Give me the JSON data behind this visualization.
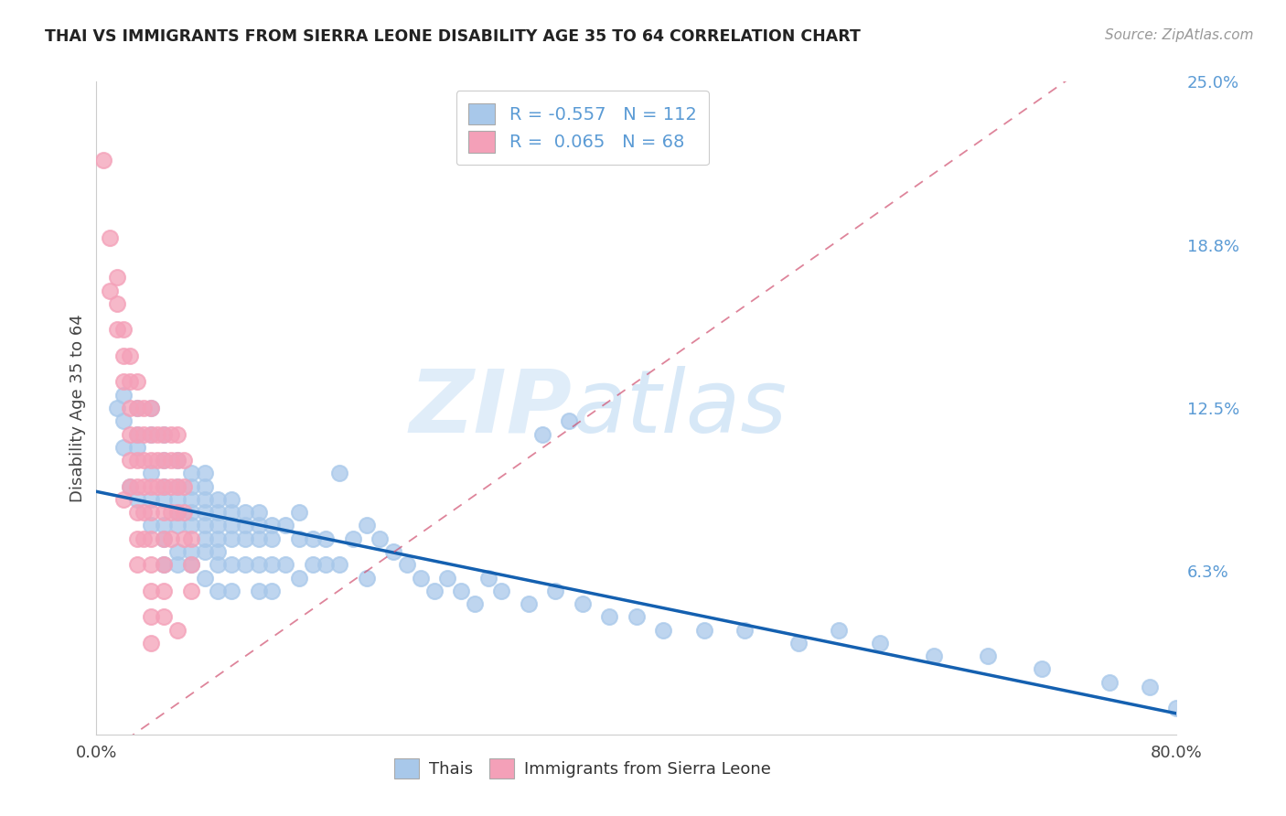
{
  "title": "THAI VS IMMIGRANTS FROM SIERRA LEONE DISABILITY AGE 35 TO 64 CORRELATION CHART",
  "source": "Source: ZipAtlas.com",
  "ylabel": "Disability Age 35 to 64",
  "xlim": [
    0.0,
    0.8
  ],
  "ylim": [
    0.0,
    0.25
  ],
  "yticks": [
    0.0,
    0.0625,
    0.125,
    0.1875,
    0.25
  ],
  "ytick_labels": [
    "",
    "6.3%",
    "12.5%",
    "18.8%",
    "25.0%"
  ],
  "xtick_positions": [
    0.0,
    0.1,
    0.2,
    0.3,
    0.4,
    0.5,
    0.6,
    0.7,
    0.8
  ],
  "xtick_labels": [
    "0.0%",
    "",
    "",
    "",
    "",
    "",
    "",
    "",
    "80.0%"
  ],
  "blue_R": -0.557,
  "blue_N": 112,
  "pink_R": 0.065,
  "pink_N": 68,
  "blue_scatter_color": "#a8c8ea",
  "pink_scatter_color": "#f4a0b8",
  "line_blue_color": "#1460b0",
  "line_pink_color": "#d05070",
  "watermark_color": "#ccdff5",
  "grid_color": "#cccccc",
  "right_tick_color": "#5b9bd5",
  "title_color": "#222222",
  "source_color": "#999999",
  "ylabel_color": "#444444",
  "blue_scatter_x": [
    0.015,
    0.02,
    0.02,
    0.02,
    0.025,
    0.03,
    0.03,
    0.03,
    0.03,
    0.04,
    0.04,
    0.04,
    0.04,
    0.04,
    0.05,
    0.05,
    0.05,
    0.05,
    0.05,
    0.05,
    0.05,
    0.06,
    0.06,
    0.06,
    0.06,
    0.06,
    0.06,
    0.06,
    0.07,
    0.07,
    0.07,
    0.07,
    0.07,
    0.07,
    0.07,
    0.08,
    0.08,
    0.08,
    0.08,
    0.08,
    0.08,
    0.08,
    0.08,
    0.09,
    0.09,
    0.09,
    0.09,
    0.09,
    0.09,
    0.09,
    0.1,
    0.1,
    0.1,
    0.1,
    0.1,
    0.1,
    0.11,
    0.11,
    0.11,
    0.11,
    0.12,
    0.12,
    0.12,
    0.12,
    0.12,
    0.13,
    0.13,
    0.13,
    0.13,
    0.14,
    0.14,
    0.15,
    0.15,
    0.15,
    0.16,
    0.16,
    0.17,
    0.17,
    0.18,
    0.18,
    0.19,
    0.2,
    0.2,
    0.21,
    0.22,
    0.23,
    0.24,
    0.25,
    0.26,
    0.27,
    0.28,
    0.29,
    0.3,
    0.32,
    0.34,
    0.36,
    0.38,
    0.4,
    0.42,
    0.45,
    0.48,
    0.52,
    0.55,
    0.58,
    0.62,
    0.66,
    0.7,
    0.75,
    0.78,
    0.8,
    0.33,
    0.35
  ],
  "blue_scatter_y": [
    0.125,
    0.13,
    0.12,
    0.11,
    0.095,
    0.125,
    0.115,
    0.11,
    0.09,
    0.125,
    0.115,
    0.1,
    0.09,
    0.08,
    0.115,
    0.105,
    0.095,
    0.09,
    0.08,
    0.075,
    0.065,
    0.105,
    0.095,
    0.09,
    0.085,
    0.08,
    0.07,
    0.065,
    0.1,
    0.095,
    0.09,
    0.085,
    0.08,
    0.07,
    0.065,
    0.1,
    0.095,
    0.09,
    0.085,
    0.08,
    0.075,
    0.07,
    0.06,
    0.09,
    0.085,
    0.08,
    0.075,
    0.07,
    0.065,
    0.055,
    0.09,
    0.085,
    0.08,
    0.075,
    0.065,
    0.055,
    0.085,
    0.08,
    0.075,
    0.065,
    0.085,
    0.08,
    0.075,
    0.065,
    0.055,
    0.08,
    0.075,
    0.065,
    0.055,
    0.08,
    0.065,
    0.085,
    0.075,
    0.06,
    0.075,
    0.065,
    0.075,
    0.065,
    0.1,
    0.065,
    0.075,
    0.08,
    0.06,
    0.075,
    0.07,
    0.065,
    0.06,
    0.055,
    0.06,
    0.055,
    0.05,
    0.06,
    0.055,
    0.05,
    0.055,
    0.05,
    0.045,
    0.045,
    0.04,
    0.04,
    0.04,
    0.035,
    0.04,
    0.035,
    0.03,
    0.03,
    0.025,
    0.02,
    0.018,
    0.01,
    0.115,
    0.12
  ],
  "pink_scatter_x": [
    0.005,
    0.01,
    0.01,
    0.015,
    0.015,
    0.015,
    0.02,
    0.02,
    0.02,
    0.02,
    0.025,
    0.025,
    0.025,
    0.025,
    0.025,
    0.025,
    0.03,
    0.03,
    0.03,
    0.03,
    0.03,
    0.03,
    0.03,
    0.03,
    0.035,
    0.035,
    0.035,
    0.035,
    0.035,
    0.035,
    0.04,
    0.04,
    0.04,
    0.04,
    0.04,
    0.04,
    0.04,
    0.04,
    0.04,
    0.04,
    0.045,
    0.045,
    0.045,
    0.05,
    0.05,
    0.05,
    0.05,
    0.05,
    0.05,
    0.05,
    0.05,
    0.055,
    0.055,
    0.055,
    0.055,
    0.055,
    0.06,
    0.06,
    0.06,
    0.06,
    0.06,
    0.065,
    0.065,
    0.065,
    0.065,
    0.07,
    0.07,
    0.07
  ],
  "pink_scatter_y": [
    0.22,
    0.19,
    0.17,
    0.175,
    0.165,
    0.155,
    0.155,
    0.145,
    0.135,
    0.09,
    0.145,
    0.135,
    0.125,
    0.115,
    0.105,
    0.095,
    0.135,
    0.125,
    0.115,
    0.105,
    0.095,
    0.085,
    0.075,
    0.065,
    0.125,
    0.115,
    0.105,
    0.095,
    0.085,
    0.075,
    0.125,
    0.115,
    0.105,
    0.095,
    0.085,
    0.075,
    0.065,
    0.055,
    0.045,
    0.035,
    0.115,
    0.105,
    0.095,
    0.115,
    0.105,
    0.095,
    0.085,
    0.075,
    0.065,
    0.055,
    0.045,
    0.115,
    0.105,
    0.095,
    0.085,
    0.075,
    0.115,
    0.105,
    0.095,
    0.085,
    0.04,
    0.105,
    0.095,
    0.085,
    0.075,
    0.075,
    0.065,
    0.055
  ],
  "pink_line_x_start": 0.0,
  "pink_line_x_end": 0.8,
  "blue_line_x_start": 0.0,
  "blue_line_x_end": 0.8,
  "blue_line_y_start": 0.093,
  "blue_line_y_end": 0.008,
  "pink_line_y_start": -0.01,
  "pink_line_y_end": 0.28,
  "legend_labels": [
    "Thais",
    "Immigrants from Sierra Leone"
  ]
}
